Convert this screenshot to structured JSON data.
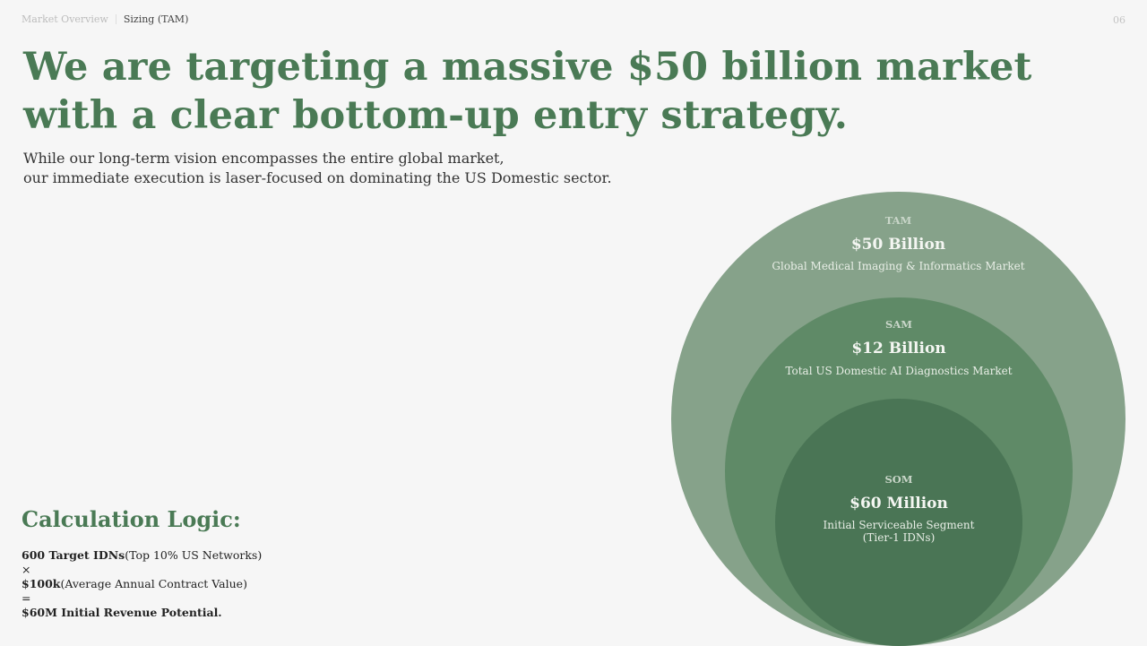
{
  "breadcrumb": {
    "section": "Market Overview",
    "current": "Sizing (TAM)"
  },
  "page_number": "06",
  "headline": {
    "line1": "We are targeting a massive $50 billion market",
    "line2": "with a clear bottom-up entry strategy."
  },
  "subtitle": {
    "line1": "While our long-term vision encompasses the entire global market,",
    "line2": "our immediate execution is laser-focused on dominating the US Domestic sector."
  },
  "calculation": {
    "title": "Calculation Logic:",
    "targets_bold": "600 Target IDNs",
    "targets_note": "(Top 10% US Networks)",
    "times": "×",
    "acv_bold": "$100k",
    "acv_note": "(Average Annual Contract Value)",
    "equals": "=",
    "result": "$60M Initial Revenue Potential."
  },
  "market_circles": {
    "tam": {
      "label": "TAM",
      "value": "$50 Billion",
      "description": "Global Medical Imaging & Informatics Market",
      "color": "#86a28a"
    },
    "sam": {
      "label": "SAM",
      "value": "$12 Billion",
      "description": "Total US Domestic AI Diagnostics Market",
      "color": "#5f8a67"
    },
    "som": {
      "label": "SOM",
      "value": "$60 Million",
      "description_line1": "Initial Serviceable Segment",
      "description_line2": "(Tier-1 IDNs)",
      "color": "#4a7555"
    }
  },
  "accent_color": "#4a7a55"
}
